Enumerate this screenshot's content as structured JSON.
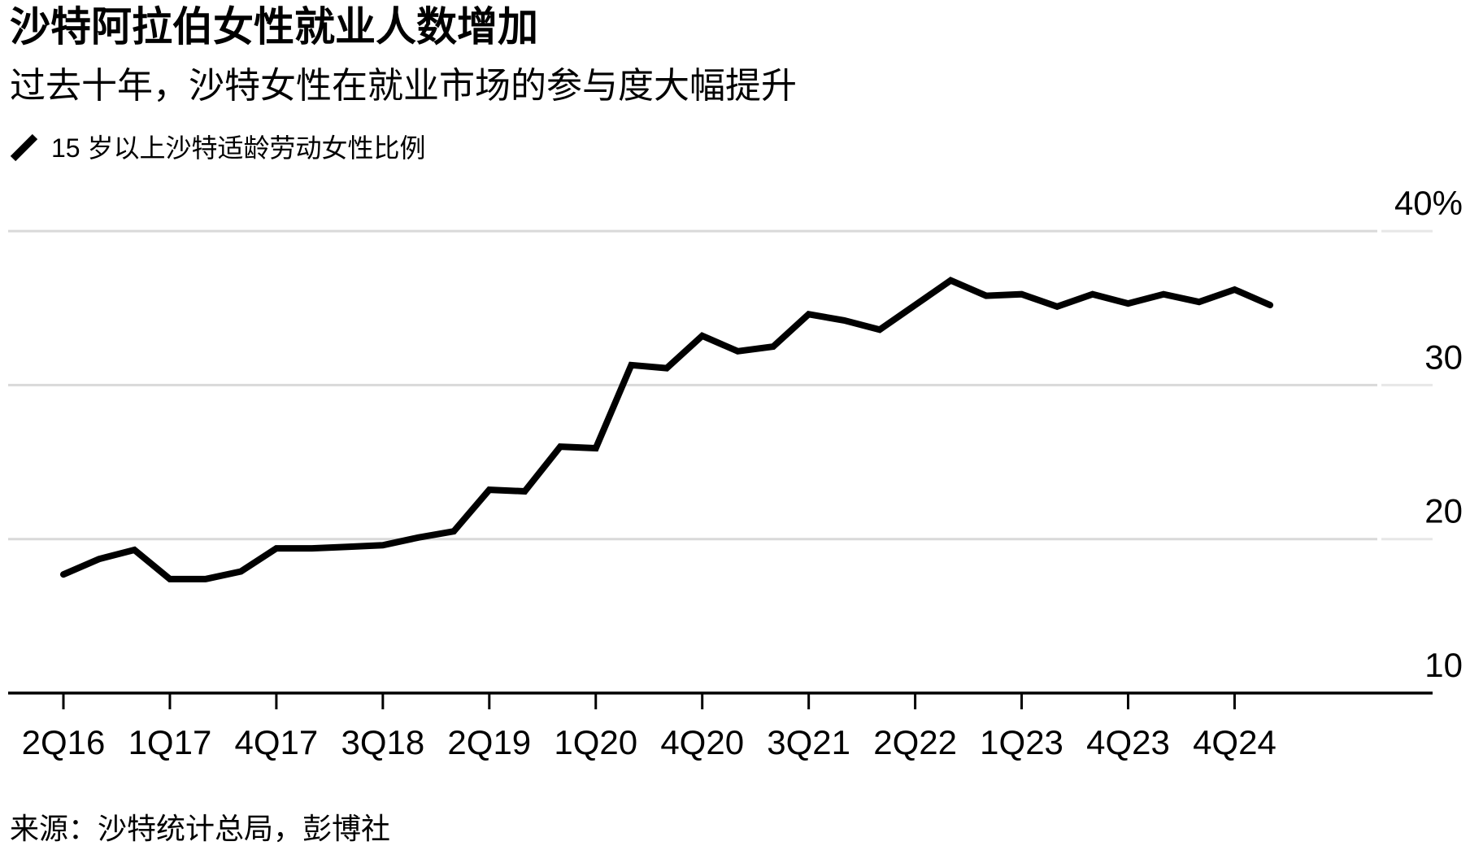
{
  "header": {
    "title": "沙特阿拉伯女性就业人数增加",
    "subtitle": "过去十年，沙特女性在就业市场的参与度大幅提升"
  },
  "legend": {
    "marker": "line-slash-icon",
    "label": "15 岁以上沙特适龄劳动女性比例"
  },
  "source": {
    "text": "来源：沙特统计总局，彭博社"
  },
  "colors": {
    "line": "#000000",
    "axis": "#000000",
    "grid": "#d9d9d9",
    "grid_extension": "#e7e7e7",
    "text": "#000000",
    "background": "#ffffff"
  },
  "chart_data": {
    "type": "line",
    "title": "沙特阿拉伯女性就业人数增加",
    "subtitle": "过去十年，沙特女性在就业市场的参与度大幅提升",
    "xlabel": "",
    "ylabel": "15 岁以上沙特适龄劳动女性比例 (%)",
    "grid": "horizontal",
    "legend_position": "top-left",
    "ylim": [
      10,
      40
    ],
    "y_ticks": [
      10,
      20,
      30,
      40
    ],
    "y_tick_labels": [
      "10",
      "20",
      "30",
      "40%"
    ],
    "x_tick_indices": [
      0,
      3,
      6,
      9,
      12,
      15,
      18,
      21,
      24,
      27,
      30,
      33
    ],
    "x_tick_labels": [
      "2Q16",
      "1Q17",
      "4Q17",
      "3Q18",
      "2Q19",
      "1Q20",
      "4Q20",
      "3Q21",
      "2Q22",
      "1Q23",
      "4Q23",
      "4Q24"
    ],
    "categories": [
      "2Q16",
      "3Q16",
      "4Q16",
      "1Q17",
      "2Q17",
      "3Q17",
      "4Q17",
      "1Q18",
      "2Q18",
      "3Q18",
      "4Q18",
      "1Q19",
      "2Q19",
      "3Q19",
      "4Q19",
      "1Q20",
      "2Q20",
      "3Q20",
      "4Q20",
      "1Q21",
      "2Q21",
      "3Q21",
      "4Q21",
      "1Q22",
      "2Q22",
      "3Q22",
      "4Q22",
      "1Q23",
      "2Q23",
      "3Q23",
      "4Q23",
      "1Q24",
      "2Q24",
      "4Q24",
      "1Q25"
    ],
    "series": [
      {
        "name": "15 岁以上沙特适龄劳动女性比例",
        "values": [
          17.7,
          18.7,
          19.3,
          17.4,
          17.4,
          17.9,
          19.4,
          19.4,
          19.5,
          19.6,
          20.1,
          20.5,
          23.2,
          23.1,
          26.0,
          25.9,
          31.3,
          31.1,
          33.2,
          32.2,
          32.5,
          34.6,
          34.2,
          33.6,
          35.2,
          36.8,
          35.8,
          35.9,
          35.1,
          35.9,
          35.3,
          35.9,
          35.4,
          36.2,
          35.2
        ]
      }
    ]
  }
}
